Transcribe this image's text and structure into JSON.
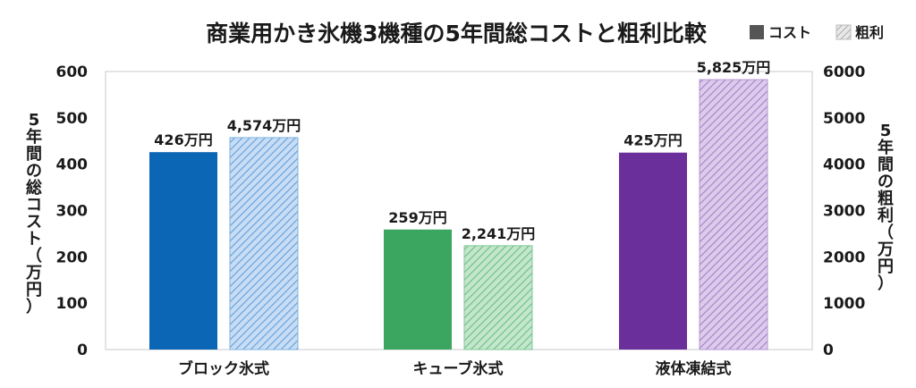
{
  "chart_data": {
    "type": "bar",
    "title": "商業用かき氷機3機種の5年間総コストと粗利比較",
    "categories": [
      "ブロック氷式",
      "キューブ氷式",
      "液体凍結式"
    ],
    "series": [
      {
        "name": "コスト",
        "axis": "left",
        "values": [
          426,
          259,
          425
        ],
        "labels": [
          "426万円",
          "259万円",
          "425万円"
        ],
        "style": "solid"
      },
      {
        "name": "粗利",
        "axis": "right",
        "values": [
          4574,
          2241,
          5825
        ],
        "labels": [
          "4,574万円",
          "2,241万円",
          "5,825万円"
        ],
        "style": "hatched"
      }
    ],
    "colors": {
      "cost": [
        "#0b66b5",
        "#3aa660",
        "#6a2f9a"
      ],
      "profit_fill": [
        "#c8ddf4",
        "#c3e6cc",
        "#dccbeb"
      ],
      "profit_hatch": [
        "#5f9fdc",
        "#6cbf83",
        "#a580c8"
      ],
      "profit_border": [
        "#7fb2e2",
        "#7fc796",
        "#b594d4"
      ],
      "legend_cost": "#555555",
      "legend_profit": "#cccccc"
    },
    "y_left": {
      "label": "5年間の総コスト（万円）",
      "lim": [
        0,
        600
      ],
      "ticks": [
        "0",
        "100",
        "200",
        "300",
        "400",
        "500",
        "600"
      ]
    },
    "y_right": {
      "label": "5年間の粗利（万円）",
      "lim": [
        0,
        6000
      ],
      "ticks": [
        "0",
        "1000",
        "2000",
        "3000",
        "4000",
        "5000",
        "6000"
      ]
    },
    "legend": {
      "placement": "top-right"
    },
    "grid": false
  }
}
